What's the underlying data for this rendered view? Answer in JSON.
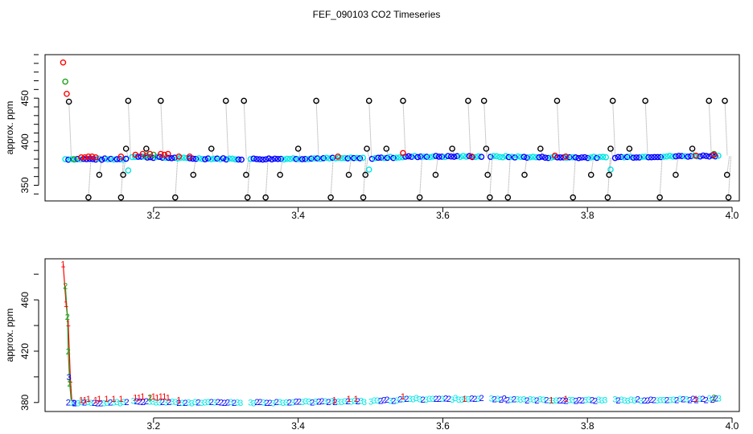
{
  "title": "FEF_090103  CO2 Timeseries",
  "colors": {
    "red": "#ff0000",
    "green": "#1fa21f",
    "blue": "#0000ff",
    "cyan": "#00e5e5",
    "black": "#000000",
    "connector": "#9a9a9a"
  },
  "chart_data": [
    {
      "type": "scatter",
      "panel": "top",
      "marker": "circle",
      "title": "",
      "xlabel": "",
      "ylabel": "approx. ppm",
      "xlim": [
        3.05,
        4.01
      ],
      "ylim": [
        332,
        500
      ],
      "x_ticks": [
        3.2,
        3.4,
        3.6,
        3.8,
        4.0
      ],
      "x_tick_labels": [
        "3.2",
        "3.4",
        "3.6",
        "3.8",
        "4.0"
      ],
      "y_ticks": [
        350,
        400,
        450
      ],
      "y_tick_labels": [
        "350",
        "400",
        "450"
      ],
      "gaps": [
        [
          3.165,
          3.17
        ],
        [
          3.325,
          3.332
        ],
        [
          3.493,
          3.498
        ],
        [
          3.657,
          3.665
        ],
        [
          3.828,
          3.834
        ]
      ],
      "baseline": [
        [
          3.078,
          380
        ],
        [
          3.16,
          380
        ],
        [
          3.17,
          383
        ],
        [
          3.24,
          381
        ],
        [
          3.33,
          380
        ],
        [
          3.45,
          381
        ],
        [
          3.5,
          381
        ],
        [
          3.56,
          383
        ],
        [
          3.66,
          383
        ],
        [
          3.75,
          382
        ],
        [
          3.83,
          382
        ],
        [
          3.9,
          383
        ],
        [
          3.985,
          384
        ]
      ],
      "series": [
        {
          "color": "red",
          "points": [
            [
              3.075,
              491
            ],
            [
              3.08,
              455
            ],
            [
              3.1,
              382
            ],
            [
              3.105,
              382
            ],
            [
              3.11,
              383
            ],
            [
              3.115,
              383
            ],
            [
              3.12,
              382
            ],
            [
              3.155,
              383
            ],
            [
              3.175,
              385
            ],
            [
              3.185,
              386
            ],
            [
              3.195,
              386
            ],
            [
              3.21,
              386
            ],
            [
              3.215,
              385
            ],
            [
              3.22,
              386
            ],
            [
              3.235,
              383
            ],
            [
              3.25,
              383
            ],
            [
              3.455,
              383
            ],
            [
              3.545,
              387
            ],
            [
              3.64,
              383
            ],
            [
              3.755,
              384
            ],
            [
              3.77,
              383
            ],
            [
              3.95,
              384
            ],
            [
              3.975,
              385
            ]
          ]
        },
        {
          "color": "green",
          "points": [
            [
              3.078,
              469
            ],
            [
              3.09,
              380
            ],
            [
              3.19,
              384
            ],
            [
              3.2,
              385
            ],
            [
              3.975,
              386
            ]
          ]
        },
        {
          "color": "cyan",
          "points": [
            [
              3.165,
              367
            ],
            [
              3.498,
              368
            ],
            [
              3.832,
              368
            ]
          ]
        },
        {
          "color": "black",
          "points": [
            [
              3.083,
              446
            ],
            [
              3.11,
              336
            ],
            [
              3.125,
              362
            ],
            [
              3.155,
              336
            ],
            [
              3.158,
              362
            ],
            [
              3.162,
              392
            ],
            [
              3.165,
              447
            ],
            [
              3.19,
              392
            ],
            [
              3.21,
              447
            ],
            [
              3.23,
              336
            ],
            [
              3.255,
              362
            ],
            [
              3.28,
              392
            ],
            [
              3.3,
              447
            ],
            [
              3.325,
              447
            ],
            [
              3.328,
              362
            ],
            [
              3.33,
              336
            ],
            [
              3.355,
              336
            ],
            [
              3.375,
              362
            ],
            [
              3.4,
              392
            ],
            [
              3.425,
              447
            ],
            [
              3.445,
              336
            ],
            [
              3.47,
              362
            ],
            [
              3.49,
              336
            ],
            [
              3.493,
              362
            ],
            [
              3.495,
              392
            ],
            [
              3.498,
              447
            ],
            [
              3.522,
              392
            ],
            [
              3.545,
              447
            ],
            [
              3.568,
              336
            ],
            [
              3.59,
              362
            ],
            [
              3.613,
              392
            ],
            [
              3.635,
              447
            ],
            [
              3.657,
              447
            ],
            [
              3.66,
              392
            ],
            [
              3.662,
              362
            ],
            [
              3.665,
              336
            ],
            [
              3.69,
              336
            ],
            [
              3.713,
              362
            ],
            [
              3.735,
              392
            ],
            [
              3.758,
              447
            ],
            [
              3.78,
              336
            ],
            [
              3.805,
              362
            ],
            [
              3.828,
              336
            ],
            [
              3.83,
              362
            ],
            [
              3.832,
              392
            ],
            [
              3.835,
              447
            ],
            [
              3.858,
              392
            ],
            [
              3.88,
              447
            ],
            [
              3.9,
              336
            ],
            [
              3.922,
              362
            ],
            [
              3.945,
              392
            ],
            [
              3.968,
              447
            ],
            [
              3.99,
              447
            ],
            [
              3.993,
              362
            ],
            [
              3.995,
              336
            ]
          ]
        }
      ]
    },
    {
      "type": "scatter",
      "panel": "bottom",
      "marker": "numeral",
      "title": "",
      "xlabel": "",
      "ylabel": "approx. ppm",
      "xlim": [
        3.05,
        4.01
      ],
      "ylim": [
        373,
        492
      ],
      "x_ticks": [
        3.2,
        3.4,
        3.6,
        3.8,
        4.0
      ],
      "x_tick_labels": [
        "3.2",
        "3.4",
        "3.6",
        "3.8",
        "4.0"
      ],
      "y_ticks": [
        380,
        420,
        460
      ],
      "y_tick_labels": [
        "380",
        "420",
        "460"
      ],
      "gaps": [
        [
          3.165,
          3.17
        ],
        [
          3.325,
          3.332
        ],
        [
          3.493,
          3.498
        ],
        [
          3.657,
          3.665
        ],
        [
          3.828,
          3.834
        ]
      ],
      "baseline": [
        [
          3.082,
          380
        ],
        [
          3.16,
          380
        ],
        [
          3.17,
          381
        ],
        [
          3.24,
          380
        ],
        [
          3.33,
          380
        ],
        [
          3.45,
          381
        ],
        [
          3.5,
          381
        ],
        [
          3.56,
          383
        ],
        [
          3.66,
          383
        ],
        [
          3.75,
          382
        ],
        [
          3.83,
          382
        ],
        [
          3.9,
          382
        ],
        [
          3.985,
          383
        ]
      ],
      "series": [
        {
          "label": "1",
          "color": "red",
          "points": [
            [
              3.075,
              488
            ],
            [
              3.079,
              457
            ],
            [
              3.082,
              442
            ],
            [
              3.085,
              398
            ],
            [
              3.1,
              382
            ],
            [
              3.105,
              382
            ],
            [
              3.11,
              383
            ],
            [
              3.12,
              382
            ],
            [
              3.125,
              383
            ],
            [
              3.135,
              383
            ],
            [
              3.145,
              383
            ],
            [
              3.155,
              383
            ],
            [
              3.175,
              384
            ],
            [
              3.18,
              384
            ],
            [
              3.185,
              385
            ],
            [
              3.195,
              384
            ],
            [
              3.2,
              385
            ],
            [
              3.205,
              384
            ],
            [
              3.21,
              385
            ],
            [
              3.215,
              385
            ],
            [
              3.22,
              384
            ],
            [
              3.235,
              382
            ],
            [
              3.45,
              382
            ],
            [
              3.47,
              383
            ],
            [
              3.48,
              383
            ],
            [
              3.545,
              385
            ],
            [
              3.63,
              383
            ],
            [
              3.75,
              382
            ],
            [
              3.77,
              383
            ],
            [
              3.95,
              383
            ]
          ]
        },
        {
          "label": "2",
          "color": "green",
          "points": [
            [
              3.078,
              471
            ],
            [
              3.081,
              447
            ],
            [
              3.082,
              420
            ],
            [
              3.084,
              395
            ],
            [
              3.195,
              384
            ],
            [
              3.975,
              384
            ]
          ]
        },
        {
          "label": "3",
          "color": "blue",
          "points": [
            [
              3.083,
              400
            ],
            [
              3.09,
              380
            ]
          ]
        }
      ]
    }
  ]
}
